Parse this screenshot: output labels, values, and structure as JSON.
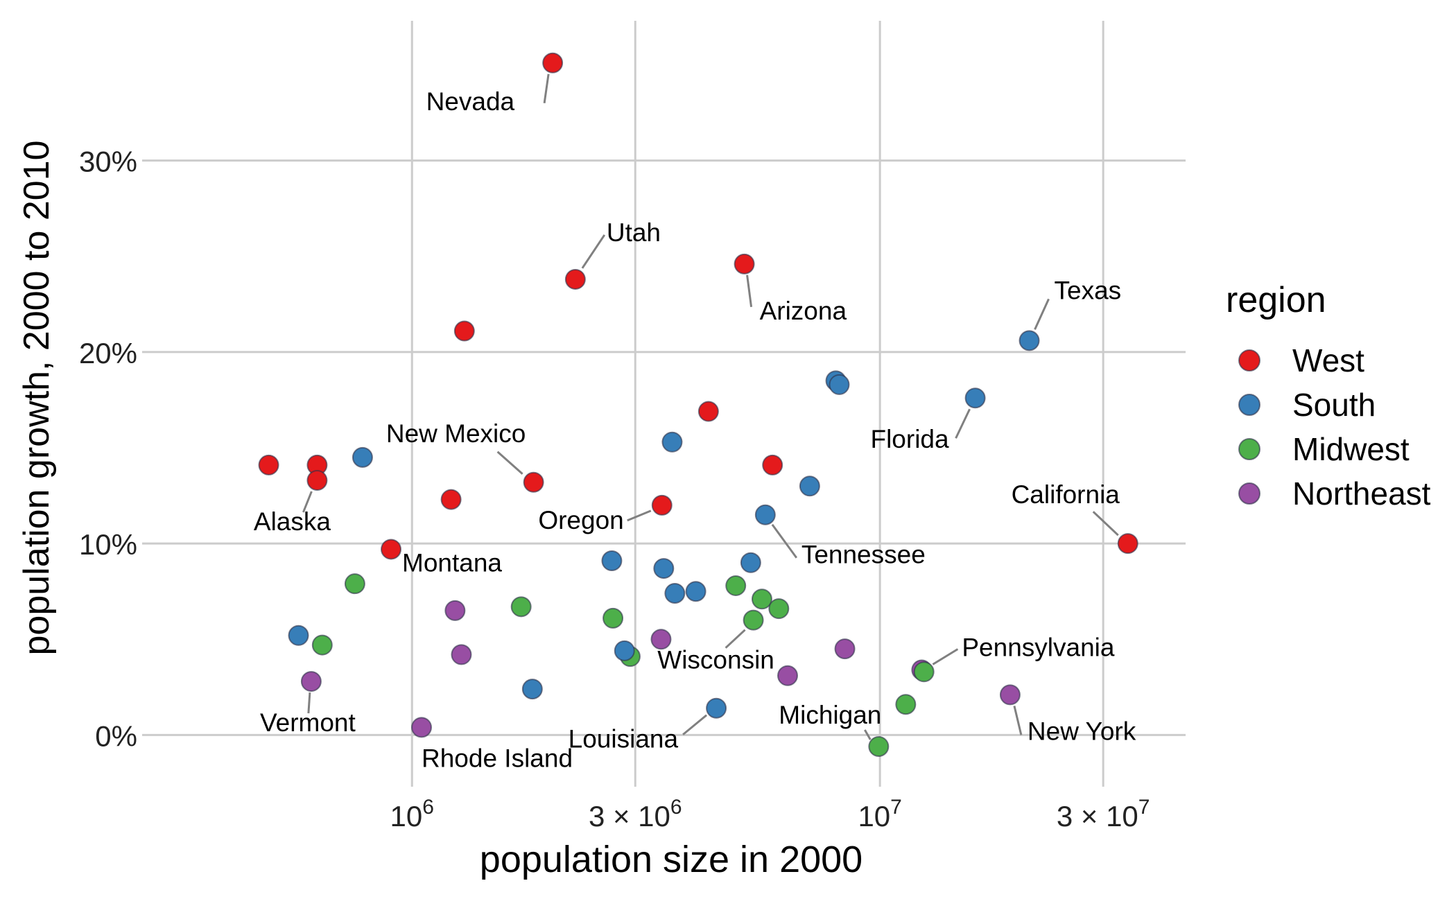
{
  "chart_data": {
    "type": "scatter",
    "x_scale": "log10",
    "xlabel": "population size in 2000",
    "ylabel": "population growth, 2000 to 2010",
    "xlim": [
      265000,
      45000000
    ],
    "ylim": [
      -2.7,
      37.3
    ],
    "x_ticks": [
      {
        "value": 1000000,
        "base": "10",
        "exp": "6",
        "coef": ""
      },
      {
        "value": 3000000,
        "base": "10",
        "exp": "6",
        "coef": "3 × "
      },
      {
        "value": 10000000,
        "base": "10",
        "exp": "7",
        "coef": ""
      },
      {
        "value": 30000000,
        "base": "10",
        "exp": "7",
        "coef": "3 × "
      }
    ],
    "y_ticks": [
      {
        "value": 0,
        "label": "0%"
      },
      {
        "value": 10,
        "label": "10%"
      },
      {
        "value": 20,
        "label": "20%"
      },
      {
        "value": 30,
        "label": "30%"
      }
    ],
    "grid": true,
    "legend": {
      "title": "region",
      "position": "right",
      "entries": [
        {
          "name": "West",
          "color": "#E41A1C"
        },
        {
          "name": "South",
          "color": "#377EB8"
        },
        {
          "name": "Midwest",
          "color": "#4DAF4A"
        },
        {
          "name": "Northeast",
          "color": "#984EA3"
        }
      ]
    },
    "points": [
      {
        "x": 1998000,
        "y": 35.1,
        "region": "West",
        "label": "Nevada"
      },
      {
        "x": 2234000,
        "y": 23.8,
        "region": "West",
        "label": "Utah"
      },
      {
        "x": 5131000,
        "y": 24.6,
        "region": "West",
        "label": "Arizona"
      },
      {
        "x": 1294000,
        "y": 21.1,
        "region": "West"
      },
      {
        "x": 20852000,
        "y": 20.6,
        "region": "South",
        "label": "Texas"
      },
      {
        "x": 8049000,
        "y": 18.5,
        "region": "South"
      },
      {
        "x": 8186000,
        "y": 18.3,
        "region": "South"
      },
      {
        "x": 15982000,
        "y": 17.6,
        "region": "South",
        "label": "Florida"
      },
      {
        "x": 4301000,
        "y": 16.9,
        "region": "West"
      },
      {
        "x": 3597000,
        "y": 15.3,
        "region": "South"
      },
      {
        "x": 627000,
        "y": 14.1,
        "region": "West"
      },
      {
        "x": 784000,
        "y": 14.5,
        "region": "South"
      },
      {
        "x": 5894000,
        "y": 14.1,
        "region": "West"
      },
      {
        "x": 494000,
        "y": 14.1,
        "region": "West"
      },
      {
        "x": 1819000,
        "y": 13.2,
        "region": "West",
        "label": "New Mexico"
      },
      {
        "x": 7078000,
        "y": 13.0,
        "region": "South"
      },
      {
        "x": 627000,
        "y": 13.3,
        "region": "West",
        "label": "Alaska"
      },
      {
        "x": 1212000,
        "y": 12.3,
        "region": "West"
      },
      {
        "x": 3421000,
        "y": 12.0,
        "region": "West",
        "label": "Oregon"
      },
      {
        "x": 5689000,
        "y": 11.5,
        "region": "South",
        "label": "Tennessee"
      },
      {
        "x": 33872000,
        "y": 10.0,
        "region": "West",
        "label": "California"
      },
      {
        "x": 902000,
        "y": 9.7,
        "region": "West",
        "label": "Montana"
      },
      {
        "x": 2673000,
        "y": 9.1,
        "region": "South"
      },
      {
        "x": 3451000,
        "y": 8.7,
        "region": "South"
      },
      {
        "x": 5296000,
        "y": 9.0,
        "region": "South"
      },
      {
        "x": 755000,
        "y": 7.9,
        "region": "Midwest"
      },
      {
        "x": 4919000,
        "y": 7.8,
        "region": "Midwest"
      },
      {
        "x": 3645000,
        "y": 7.4,
        "region": "South"
      },
      {
        "x": 4041000,
        "y": 7.5,
        "region": "South"
      },
      {
        "x": 5595000,
        "y": 7.1,
        "region": "Midwest"
      },
      {
        "x": 6080000,
        "y": 6.6,
        "region": "Midwest"
      },
      {
        "x": 1711000,
        "y": 6.7,
        "region": "Midwest"
      },
      {
        "x": 1236000,
        "y": 6.5,
        "region": "Northeast"
      },
      {
        "x": 2688000,
        "y": 6.1,
        "region": "Midwest"
      },
      {
        "x": 5364000,
        "y": 6.0,
        "region": "Midwest",
        "label": "Wisconsin"
      },
      {
        "x": 572000,
        "y": 5.2,
        "region": "South"
      },
      {
        "x": 643000,
        "y": 4.7,
        "region": "Midwest"
      },
      {
        "x": 3406000,
        "y": 5.0,
        "region": "Northeast"
      },
      {
        "x": 8414000,
        "y": 4.5,
        "region": "Northeast"
      },
      {
        "x": 2926000,
        "y": 4.1,
        "region": "Midwest"
      },
      {
        "x": 2845000,
        "y": 4.4,
        "region": "South"
      },
      {
        "x": 1275000,
        "y": 4.2,
        "region": "Northeast"
      },
      {
        "x": 12281000,
        "y": 3.4,
        "region": "Northeast",
        "label": "Pennsylvania"
      },
      {
        "x": 12420000,
        "y": 3.3,
        "region": "Midwest"
      },
      {
        "x": 6349000,
        "y": 3.1,
        "region": "Northeast"
      },
      {
        "x": 1808000,
        "y": 2.4,
        "region": "South"
      },
      {
        "x": 609000,
        "y": 2.8,
        "region": "Northeast",
        "label": "Vermont"
      },
      {
        "x": 18976000,
        "y": 2.1,
        "region": "Northeast",
        "label": "New York"
      },
      {
        "x": 11353000,
        "y": 1.6,
        "region": "Midwest"
      },
      {
        "x": 4469000,
        "y": 1.4,
        "region": "South",
        "label": "Louisiana"
      },
      {
        "x": 1048000,
        "y": 0.4,
        "region": "Northeast",
        "label": "Rhode Island"
      },
      {
        "x": 9938000,
        "y": -0.6,
        "region": "Midwest",
        "label": "Michigan"
      }
    ]
  }
}
